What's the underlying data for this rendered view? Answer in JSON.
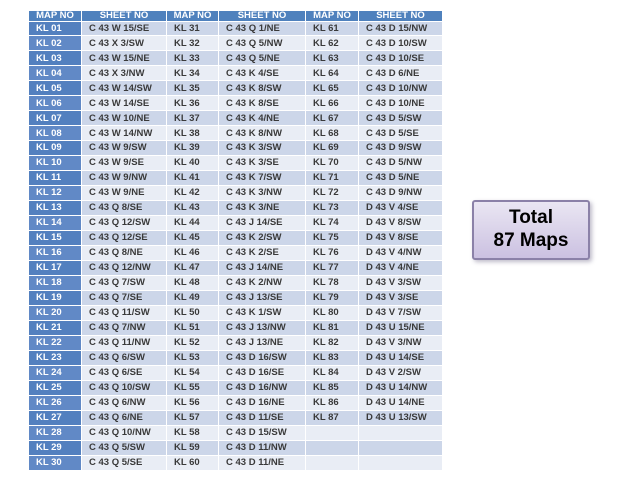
{
  "table": {
    "headers": [
      "MAP NO",
      "SHEET NO",
      "MAP NO",
      "SHEET NO",
      "MAP NO",
      "SHEET NO"
    ],
    "rows": [
      [
        "KL 01",
        "C 43 W 15/SE",
        "KL 31",
        "C 43 Q 1/NE",
        "KL 61",
        "C 43 D 15/NW"
      ],
      [
        "KL 02",
        "C 43 X 3/SW",
        "KL 32",
        "C 43 Q 5/NW",
        "KL 62",
        "C 43 D 10/SW"
      ],
      [
        "KL 03",
        "C 43 W 15/NE",
        "KL 33",
        "C 43 Q 5/NE",
        "KL 63",
        "C 43 D 10/SE"
      ],
      [
        "KL 04",
        "C 43 X 3/NW",
        "KL 34",
        "C 43 K 4/SE",
        "KL 64",
        "C 43 D 6/NE"
      ],
      [
        "KL 05",
        "C 43 W 14/SW",
        "KL 35",
        "C 43 K 8/SW",
        "KL 65",
        "C 43 D 10/NW"
      ],
      [
        "KL 06",
        "C 43 W 14/SE",
        "KL 36",
        "C 43 K 8/SE",
        "KL 66",
        "C 43 D 10/NE"
      ],
      [
        "KL 07",
        "C 43 W 10/NE",
        "KL 37",
        "C 43 K 4/NE",
        "KL 67",
        "C 43 D 5/SW"
      ],
      [
        "KL 08",
        "C 43 W 14/NW",
        "KL 38",
        "C 43 K 8/NW",
        "KL 68",
        "C 43 D 5/SE"
      ],
      [
        "KL 09",
        "C 43 W 9/SW",
        "KL 39",
        "C 43 K 3/SW",
        "KL 69",
        "C 43 D 9/SW"
      ],
      [
        "KL 10",
        "C 43 W 9/SE",
        "KL 40",
        "C 43 K 3/SE",
        "KL 70",
        "C 43 D 5/NW"
      ],
      [
        "KL 11",
        "C 43 W 9/NW",
        "KL 41",
        "C 43 K 7/SW",
        "KL 71",
        "C 43 D 5/NE"
      ],
      [
        "KL 12",
        "C 43 W 9/NE",
        "KL 42",
        "C 43 K 3/NW",
        "KL 72",
        "C 43 D 9/NW"
      ],
      [
        "KL 13",
        "C 43 Q 8/SE",
        "KL 43",
        "C 43 K 3/NE",
        "KL 73",
        "D 43 V 4/SE"
      ],
      [
        "KL 14",
        "C 43 Q 12/SW",
        "KL 44",
        "C 43 J 14/SE",
        "KL 74",
        "D 43 V 8/SW"
      ],
      [
        "KL 15",
        "C 43 Q 12/SE",
        "KL 45",
        "C 43 K 2/SW",
        "KL 75",
        "D 43 V 8/SE"
      ],
      [
        "KL 16",
        "C 43 Q 8/NE",
        "KL 46",
        "C 43 K 2/SE",
        "KL 76",
        "D 43 V 4/NW"
      ],
      [
        "KL 17",
        "C 43 Q 12/NW",
        "KL 47",
        "C 43 J 14/NE",
        "KL 77",
        "D 43 V 4/NE"
      ],
      [
        "KL 18",
        "C 43 Q 7/SW",
        "KL 48",
        "C 43 K 2/NW",
        "KL 78",
        "D 43 V 3/SW"
      ],
      [
        "KL 19",
        "C 43 Q 7/SE",
        "KL 49",
        "C 43 J 13/SE",
        "KL 79",
        "D 43 V 3/SE"
      ],
      [
        "KL 20",
        "C 43 Q 11/SW",
        "KL 50",
        "C 43 K 1/SW",
        "KL 80",
        "D 43 V 7/SW"
      ],
      [
        "KL 21",
        "C 43 Q 7/NW",
        "KL 51",
        "C 43 J 13/NW",
        "KL 81",
        "D 43 U 15/NE"
      ],
      [
        "KL 22",
        "C 43 Q 11/NW",
        "KL 52",
        "C 43 J 13/NE",
        "KL 82",
        "D 43 V 3/NW"
      ],
      [
        "KL 23",
        "C 43 Q 6/SW",
        "KL 53",
        "C 43 D 16/SW",
        "KL 83",
        "D 43 U 14/SE"
      ],
      [
        "KL 24",
        "C 43 Q 6/SE",
        "KL 54",
        "C 43 D 16/SE",
        "KL 84",
        "D 43 V 2/SW"
      ],
      [
        "KL 25",
        "C 43 Q 10/SW",
        "KL 55",
        "C 43 D 16/NW",
        "KL 85",
        "D 43 U 14/NW"
      ],
      [
        "KL 26",
        "C 43 Q 6/NW",
        "KL 56",
        "C 43 D 16/NE",
        "KL 86",
        "D 43 U 14/NE"
      ],
      [
        "KL 27",
        "C 43 Q 6/NE",
        "KL 57",
        "C 43 D 11/SE",
        "KL 87",
        "D 43 U 13/SW"
      ],
      [
        "KL 28",
        "C 43 Q 10/NW",
        "KL 58",
        "C 43 D 15/SW",
        "",
        ""
      ],
      [
        "KL 29",
        "C 43 Q 5/SW",
        "KL 59",
        "C 43 D 11/NW",
        "",
        ""
      ],
      [
        "KL 30",
        "C 43 Q 5/SE",
        "KL 60",
        "C 43 D 11/NE",
        "",
        ""
      ]
    ]
  },
  "total_box": {
    "line1": "Total",
    "line2": "87 Maps"
  },
  "colors": {
    "header-bg": "#4f81bd",
    "header-text": "#ffffff",
    "first-col-a": "#5380bf",
    "first-col-b": "#6189c6",
    "band-a": "#ccd6e9",
    "band-b": "#e9edf5",
    "cell-text": "#3a3a3a",
    "box-bg-top": "#eae6f3",
    "box-bg-bottom": "#cbc1e1",
    "box-border": "#8b81a8"
  }
}
